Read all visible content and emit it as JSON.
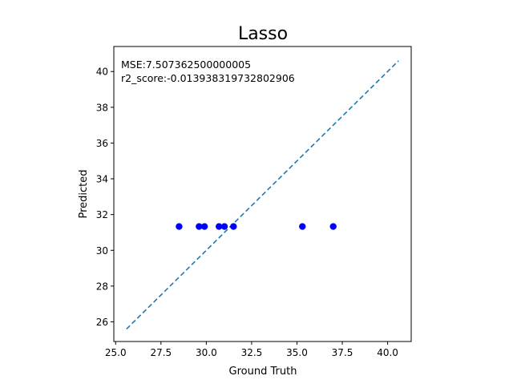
{
  "chart_data": {
    "type": "scatter",
    "title": "Lasso",
    "xlabel": "Ground Truth",
    "ylabel": "Predicted",
    "xlim": [
      24.9,
      41.3
    ],
    "ylim": [
      24.9,
      41.4
    ],
    "xticks": [
      25.0,
      27.5,
      30.0,
      32.5,
      35.0,
      37.5,
      40.0
    ],
    "xtick_labels": [
      "25.0",
      "27.5",
      "30.0",
      "32.5",
      "35.0",
      "37.5",
      "40.0"
    ],
    "yticks": [
      26,
      28,
      30,
      32,
      34,
      36,
      38,
      40
    ],
    "ytick_labels": [
      "26",
      "28",
      "30",
      "32",
      "34",
      "36",
      "38",
      "40"
    ],
    "annotations": [
      "MSE:7.507362500000005",
      "r2_score:-0.013938319732802906"
    ],
    "points": {
      "x": [
        28.5,
        29.6,
        29.9,
        30.7,
        31.0,
        31.5,
        35.3,
        37.0
      ],
      "y": [
        31.33,
        31.33,
        31.33,
        31.33,
        31.33,
        31.33,
        31.33,
        31.33
      ],
      "color": "#0000ff"
    },
    "reference_line": {
      "x": [
        25.6,
        40.6
      ],
      "y": [
        25.6,
        40.6
      ],
      "style": "dashed",
      "color": "#1f77b4"
    },
    "grid": false
  }
}
